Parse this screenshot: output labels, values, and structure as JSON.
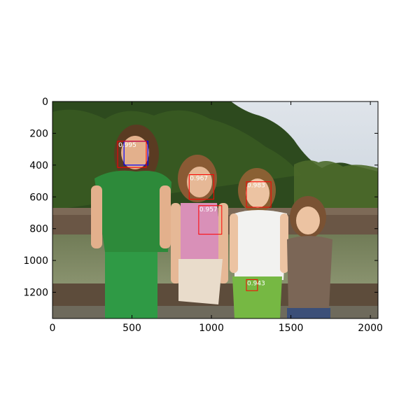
{
  "figure": {
    "type": "image-with-detection-boxes",
    "x_ticks": [
      "0",
      "500",
      "1000",
      "1500",
      "2000"
    ],
    "y_ticks": [
      "0",
      "200",
      "400",
      "600",
      "800",
      "1000",
      "1200"
    ],
    "xlim": [
      0,
      2048
    ],
    "ylim": [
      1365,
      0
    ],
    "image_description": "Outdoor photo of four young girls standing in front of a wooden railing with trees and a pond behind them",
    "detections": [
      {
        "score": "0.995",
        "x0": 410,
        "y0": 250,
        "x1": 590,
        "y1": 415,
        "color": "#ff0000"
      },
      {
        "score": "0.967",
        "x0": 860,
        "y0": 460,
        "x1": 1015,
        "y1": 615,
        "color": "#ff0000"
      },
      {
        "score": "0.983",
        "x0": 1220,
        "y0": 505,
        "x1": 1375,
        "y1": 665,
        "color": "#ff0000"
      },
      {
        "score": "0.957",
        "x0": 920,
        "y0": 655,
        "x1": 1065,
        "y1": 835,
        "color": "#ff0000"
      },
      {
        "score": "0.943",
        "x0": 1220,
        "y0": 1120,
        "x1": 1290,
        "y1": 1190,
        "color": "#ff0000"
      }
    ],
    "ground_truth": [
      {
        "x0": 450,
        "y0": 250,
        "x1": 600,
        "y1": 400,
        "color": "#0000ff"
      }
    ]
  }
}
